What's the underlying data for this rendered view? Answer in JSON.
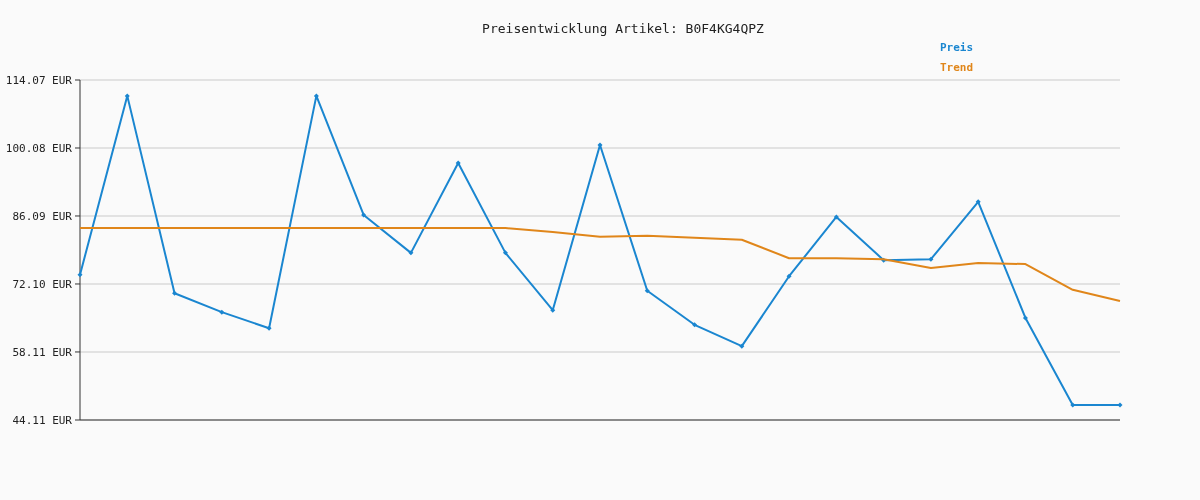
{
  "chart_data": {
    "type": "line",
    "title": "Preisentwicklung Artikel: B0F4KG4QPZ",
    "categories": [
      null,
      null,
      null,
      null,
      null,
      null,
      null,
      null,
      null,
      null,
      null,
      null,
      null,
      null,
      null,
      null,
      null,
      null,
      null,
      null,
      null,
      null,
      null
    ],
    "series": [
      {
        "name": "Preis",
        "color": "#1a86d0",
        "marker": "diamond",
        "values": [
          74.0,
          110.8,
          70.2,
          66.3,
          63.0,
          110.8,
          86.3,
          78.5,
          97.0,
          78.5,
          66.7,
          100.7,
          70.7,
          63.7,
          59.3,
          73.7,
          85.9,
          77.0,
          77.2,
          89.0,
          65.1,
          47.2,
          47.2
        ]
      },
      {
        "name": "Trend",
        "color": "#e0861a",
        "marker": "none",
        "values": [
          83.6,
          83.6,
          83.6,
          83.6,
          83.6,
          83.6,
          83.6,
          83.6,
          83.6,
          83.6,
          82.8,
          81.8,
          82.0,
          81.6,
          81.2,
          77.4,
          77.4,
          77.2,
          75.4,
          76.4,
          76.2,
          70.9,
          68.6
        ]
      }
    ],
    "ylim": [
      44.11,
      114.07
    ],
    "yticks": [
      {
        "value": 44.11,
        "label": "44.11 EUR"
      },
      {
        "value": 58.11,
        "label": "58.11 EUR"
      },
      {
        "value": 72.1,
        "label": "72.10 EUR"
      },
      {
        "value": 86.09,
        "label": "86.09 EUR"
      },
      {
        "value": 100.08,
        "label": "100.08 EUR"
      },
      {
        "value": 114.07,
        "label": "114.07 EUR"
      }
    ],
    "grid": "y",
    "legend": "top right",
    "line_style": "solid"
  }
}
